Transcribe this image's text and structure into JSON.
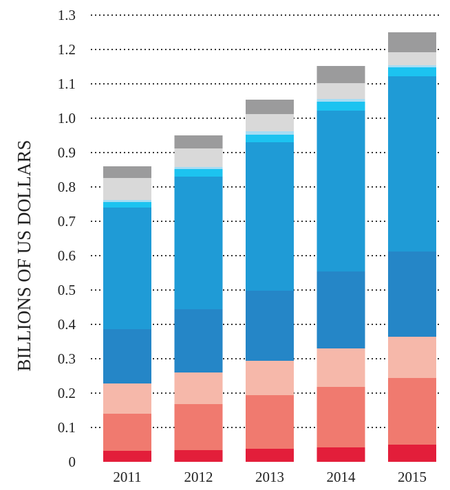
{
  "chart_data": {
    "type": "bar",
    "stacked": true,
    "title": "",
    "xlabel": "",
    "ylabel": "BILLIONS OF US DOLLARS",
    "ylim": [
      0,
      1.3
    ],
    "yticks": [
      "0",
      "0.1",
      "0.2",
      "0.3",
      "0.4",
      "0.5",
      "0.6",
      "0.7",
      "0.8",
      "0.9",
      "1.0",
      "1.1",
      "1.2",
      "1.3"
    ],
    "grid": "horizontal-dotted",
    "legend": "none",
    "categories": [
      "2011",
      "2012",
      "2013",
      "2014",
      "2015"
    ],
    "series": [
      {
        "color": "#e31e3a",
        "values": [
          0.032,
          0.034,
          0.038,
          0.042,
          0.05
        ]
      },
      {
        "color": "#f07a6f",
        "values": [
          0.108,
          0.134,
          0.156,
          0.176,
          0.194
        ]
      },
      {
        "color": "#f6b8aa",
        "values": [
          0.088,
          0.092,
          0.1,
          0.112,
          0.12
        ]
      },
      {
        "color": "#2586c7",
        "values": [
          0.158,
          0.184,
          0.204,
          0.224,
          0.248
        ]
      },
      {
        "color": "#1f9bd6",
        "values": [
          0.354,
          0.386,
          0.432,
          0.468,
          0.51
        ]
      },
      {
        "color": "#1cc3f0",
        "values": [
          0.016,
          0.022,
          0.022,
          0.026,
          0.026
        ]
      },
      {
        "color": "#a6dcf3",
        "values": [
          0.006,
          0.006,
          0.01,
          0.008,
          0.006
        ]
      },
      {
        "color": "#d9d9d9",
        "values": [
          0.064,
          0.054,
          0.05,
          0.046,
          0.038
        ]
      },
      {
        "color": "#9b9b9c",
        "values": [
          0.034,
          0.038,
          0.042,
          0.05,
          0.058
        ]
      }
    ]
  }
}
